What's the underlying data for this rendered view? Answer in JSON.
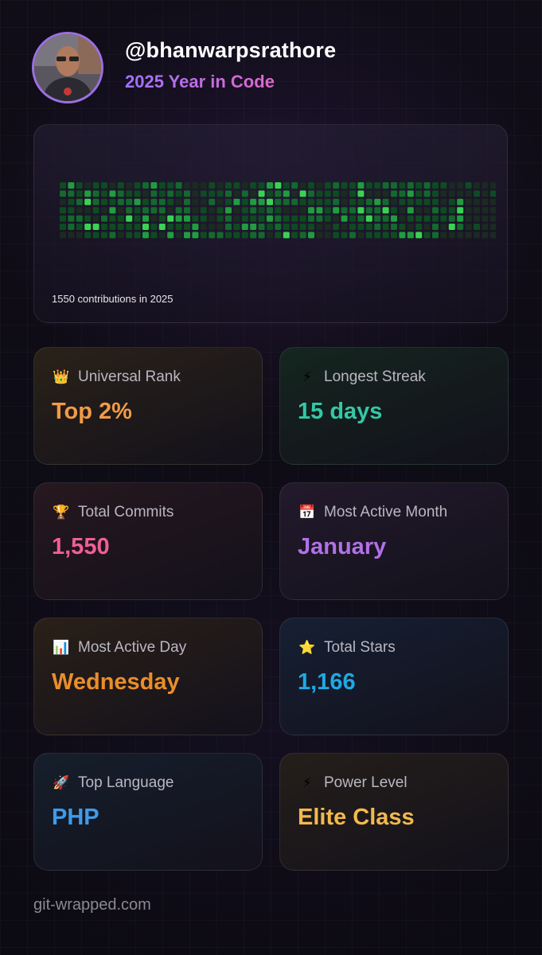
{
  "header": {
    "username": "@bhanwarpsrathore",
    "subtitle": "2025 Year in Code"
  },
  "contributions": {
    "label": "1550 contributions in 2025",
    "weeks": 53,
    "days_per_week": 7,
    "levels": [
      0,
      1,
      2,
      3,
      4
    ],
    "colors": [
      "#1b2a22",
      "#0e4a22",
      "#13692e",
      "#1f9d3f",
      "#39d353"
    ]
  },
  "stats": [
    {
      "icon": "crown-icon",
      "glyph": "👑",
      "label": "Universal Rank",
      "value": "Top 2%",
      "color": "#f29b45",
      "bg": "#2a2219"
    },
    {
      "icon": "lightning-icon",
      "glyph": "⚡",
      "label": "Longest Streak",
      "value": "15 days",
      "color": "#34c8a6",
      "bg": "#15261f"
    },
    {
      "icon": "trophy-icon",
      "glyph": "🏆",
      "label": "Total Commits",
      "value": "1,550",
      "color": "#ef5f95",
      "bg": "#27181f"
    },
    {
      "icon": "calendar-icon",
      "glyph": "📅",
      "label": "Most Active Month",
      "value": "January",
      "color": "#b071e6",
      "bg": "#231a2c"
    },
    {
      "icon": "bar-chart-icon",
      "glyph": "📊",
      "label": "Most Active Day",
      "value": "Wednesday",
      "color": "#e98e2a",
      "bg": "#2a2018"
    },
    {
      "icon": "star-icon",
      "glyph": "⭐",
      "label": "Total Stars",
      "value": "1,166",
      "color": "#1ea9e4",
      "bg": "#162033"
    },
    {
      "icon": "rocket-icon",
      "glyph": "🚀",
      "label": "Top Language",
      "value": "PHP",
      "color": "#3f9be9",
      "bg": "#161f2c"
    },
    {
      "icon": "lightning-icon",
      "glyph": "⚡",
      "label": "Power Level",
      "value": "Elite Class",
      "color": "#f2b94e",
      "bg": "#251f1a"
    }
  ],
  "footer": {
    "text": "git-wrapped.com"
  }
}
